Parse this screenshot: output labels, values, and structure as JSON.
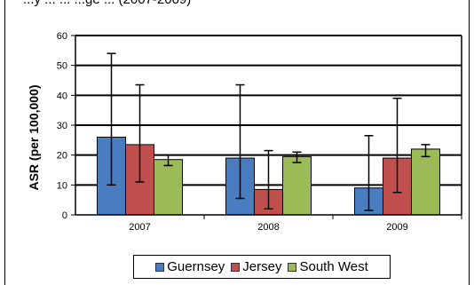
{
  "chart_data": {
    "type": "bar",
    "title": "...y ... ... ...ge ... (2007-2009)",
    "ylabel": "ASR (per 100,000)",
    "xlabel": "",
    "ylim": [
      0,
      60
    ],
    "yticks": [
      0,
      10,
      20,
      30,
      40,
      50,
      60
    ],
    "grid": true,
    "legend_position": "bottom",
    "categories": [
      "2007",
      "2008",
      "2009"
    ],
    "series": [
      {
        "name": "Guernsey",
        "color": "#4a7dbf",
        "values": [
          26,
          19,
          9
        ],
        "error_low": [
          10,
          5.5,
          1.5
        ],
        "error_high": [
          54,
          43.5,
          26.5
        ]
      },
      {
        "name": "Jersey",
        "color": "#c0504d",
        "values": [
          23.5,
          8.5,
          19
        ],
        "error_low": [
          11,
          2,
          7.5
        ],
        "error_high": [
          43.5,
          21.5,
          39
        ]
      },
      {
        "name": "South West",
        "color": "#9bbb59",
        "values": [
          18.5,
          19.5,
          22
        ],
        "error_low": [
          16.5,
          17.5,
          19.5
        ],
        "error_high": [
          20,
          21,
          23.5
        ]
      }
    ]
  }
}
